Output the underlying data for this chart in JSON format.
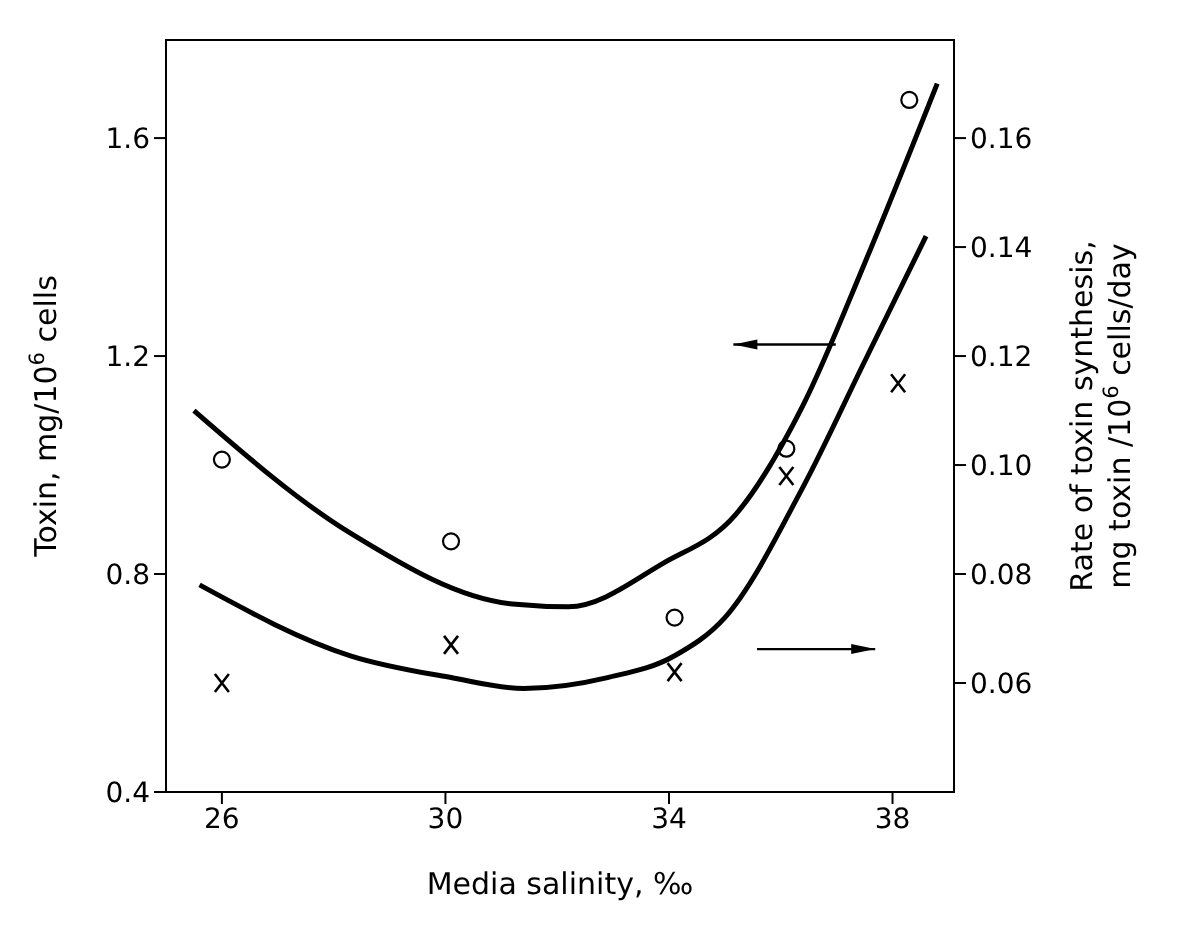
{
  "chart_data": {
    "type": "scatter",
    "xlabel": "Media salinity,  ‰",
    "ylabel": "Toxin,  mg/10$^{6}$ cells",
    "y2label": "Rate of toxin synthesis,\nmg toxin /10$^{6}$ cells/day",
    "xlim": [
      25,
      39.1
    ],
    "xticks": [
      26,
      30,
      34,
      38
    ],
    "ylim": [
      0.4,
      1.78
    ],
    "yticks": [
      0.4,
      0.8,
      1.2,
      1.6
    ],
    "y2lim": [
      0.04,
      0.178
    ],
    "y2ticks": [
      0.06,
      0.08,
      {
        "value": 0.1,
        "label": "0.10"
      },
      0.12,
      0.14,
      0.16
    ],
    "grid": false,
    "series": [
      {
        "marker": "circle",
        "color": "#000000",
        "x": [
          26,
          30.1,
          34.1,
          36.1,
          38.3
        ],
        "values": [
          1.01,
          0.86,
          0.72,
          1.03,
          1.67
        ]
      },
      {
        "marker": "cross",
        "axis": "y2",
        "color": "#000000",
        "x": [
          26,
          30.1,
          34.1,
          36.1,
          38.1
        ],
        "values": [
          0.06,
          0.067,
          0.062,
          0.098,
          0.115
        ]
      },
      {
        "type": "line",
        "marker": "none",
        "line_style": "solid",
        "color": "#000000",
        "x": [
          25.5,
          28.3,
          31.2,
          32.2,
          33.9,
          35.2,
          36.4,
          37.5,
          38.8
        ],
        "values": [
          1.1,
          0.875,
          0.745,
          0.74,
          0.82,
          0.91,
          1.11,
          1.37,
          1.7
        ]
      },
      {
        "type": "line",
        "marker": "none",
        "line_style": "solid",
        "axis": "y2",
        "color": "#000000",
        "x": [
          25.6,
          28.3,
          30.1,
          31.4,
          32.9,
          34.1,
          35,
          36.4,
          37.5,
          38.6
        ],
        "values": [
          0.078,
          0.065,
          0.061,
          0.059,
          0.061,
          0.065,
          0.072,
          0.096,
          0.119,
          0.142
        ]
      }
    ]
  }
}
